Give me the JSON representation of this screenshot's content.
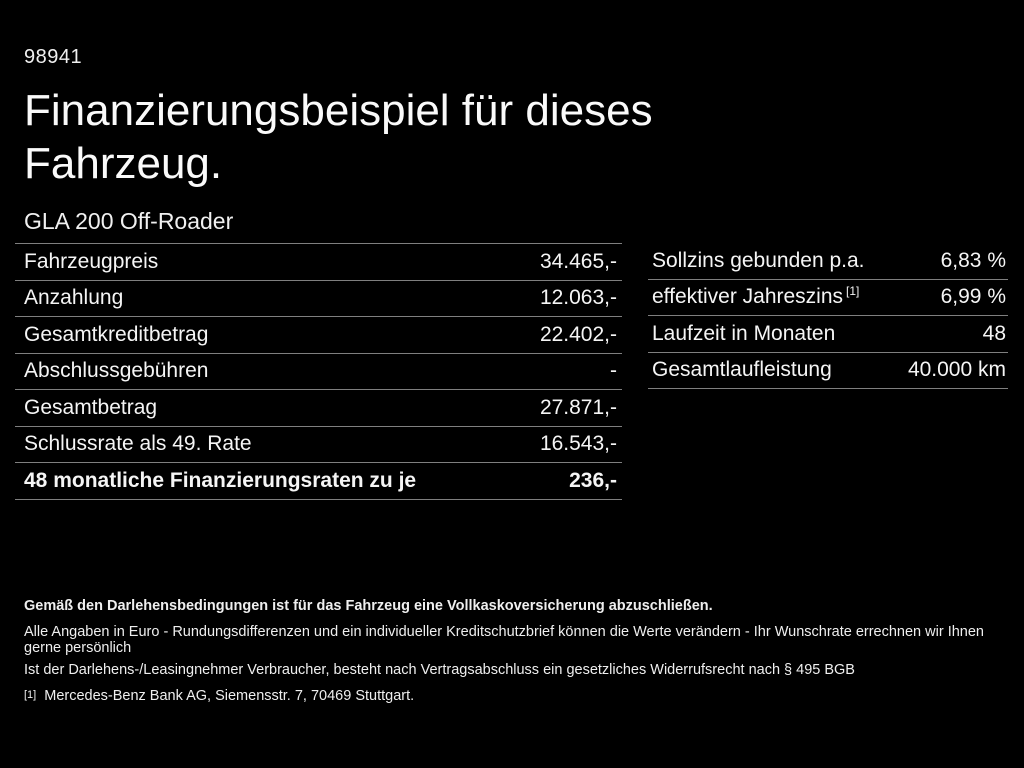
{
  "colors": {
    "background": "#000000",
    "text": "#f5f5f5",
    "divider": "#7f7f7f"
  },
  "header": {
    "code": "98941",
    "title_line1": "Finanzierungsbeispiel für dieses",
    "title_line2": "Fahrzeug.",
    "vehicle": "GLA 200 Off-Roader"
  },
  "left_table": {
    "rows": [
      {
        "label": "Fahrzeugpreis",
        "value": "34.465,-"
      },
      {
        "label": "Anzahlung",
        "value": "12.063,-"
      },
      {
        "label": "Gesamtkreditbetrag",
        "value": "22.402,-"
      },
      {
        "label": "Abschlussgebühren",
        "value": "-"
      },
      {
        "label": "Gesamtbetrag",
        "value": "27.871,-"
      },
      {
        "label": "Schlussrate als 49. Rate",
        "value": "16.543,-"
      },
      {
        "label": "48 monatliche Finanzierungsraten zu je",
        "value": "236,-"
      }
    ]
  },
  "right_table": {
    "rows": [
      {
        "label": "Sollzins gebunden p.a.",
        "value": "6,83 %"
      },
      {
        "label": "effektiver Jahreszins",
        "sup": "[1]",
        "value": "6,99 %"
      },
      {
        "label": "Laufzeit in Monaten",
        "value": "48"
      },
      {
        "label": "Gesamtlaufleistung",
        "value": "40.000 km"
      }
    ]
  },
  "footer": {
    "line1": "Gemäß den Darlehensbedingungen ist für das Fahrzeug eine Vollkaskoversicherung abzuschließen.",
    "line2": "Alle Angaben in Euro - Rundungsdifferenzen und ein individueller Kreditschutzbrief können die Werte verändern - Ihr Wunschrate errechnen wir Ihnen gerne persönlich",
    "line3": "Ist der Darlehens-/Leasingnehmer Verbraucher, besteht nach Vertragsabschluss ein gesetzliches Widerrufsrecht nach § 495 BGB",
    "footnote_marker": "[1]",
    "footnote_text": "Mercedes-Benz Bank AG, Siemensstr. 7, 70469 Stuttgart."
  }
}
